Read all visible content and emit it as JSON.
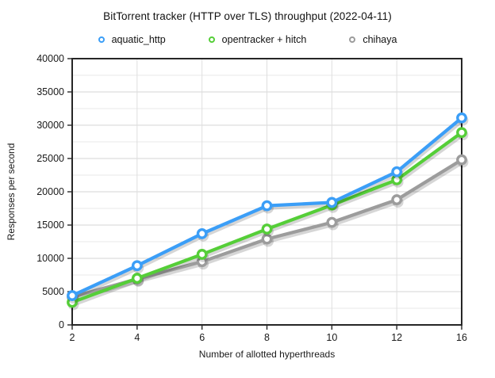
{
  "chart_data": {
    "type": "line",
    "title": "BitTorrent tracker (HTTP over TLS) throughput (2022-04-11)",
    "xlabel": "Number of allotted hyperthreads",
    "ylabel": "Responses per second",
    "x_categories": [
      "2",
      "4",
      "6",
      "8",
      "10",
      "12",
      "16"
    ],
    "ylim": [
      0,
      40000
    ],
    "ytick_step": 5000,
    "yminor_step": 2500,
    "ytick_labels": [
      "0",
      "5000",
      "10000",
      "15000",
      "20000",
      "25000",
      "30000",
      "35000",
      "40000"
    ],
    "grid": true,
    "legend_position": "top",
    "series": [
      {
        "name": "aquatic_http",
        "color": "#3B9EF7",
        "values": [
          4400,
          8900,
          13700,
          17900,
          18400,
          23000,
          31100
        ]
      },
      {
        "name": "opentracker + hitch",
        "color": "#55CE38",
        "values": [
          3400,
          7000,
          10600,
          14400,
          18000,
          21800,
          28900
        ]
      },
      {
        "name": "chihaya",
        "color": "#9C9C9C",
        "values": [
          4200,
          6900,
          9500,
          12900,
          15400,
          18800,
          24800
        ]
      }
    ]
  },
  "style_colors": {
    "axis_box": "#262626",
    "grid_major": "#d6d6d6",
    "grid_minor": "#e9e9e9",
    "grid_vertical": "#dedede",
    "tick_text": "#1a1a1a",
    "shadow": "rgba(0,0,0,0.16)"
  }
}
